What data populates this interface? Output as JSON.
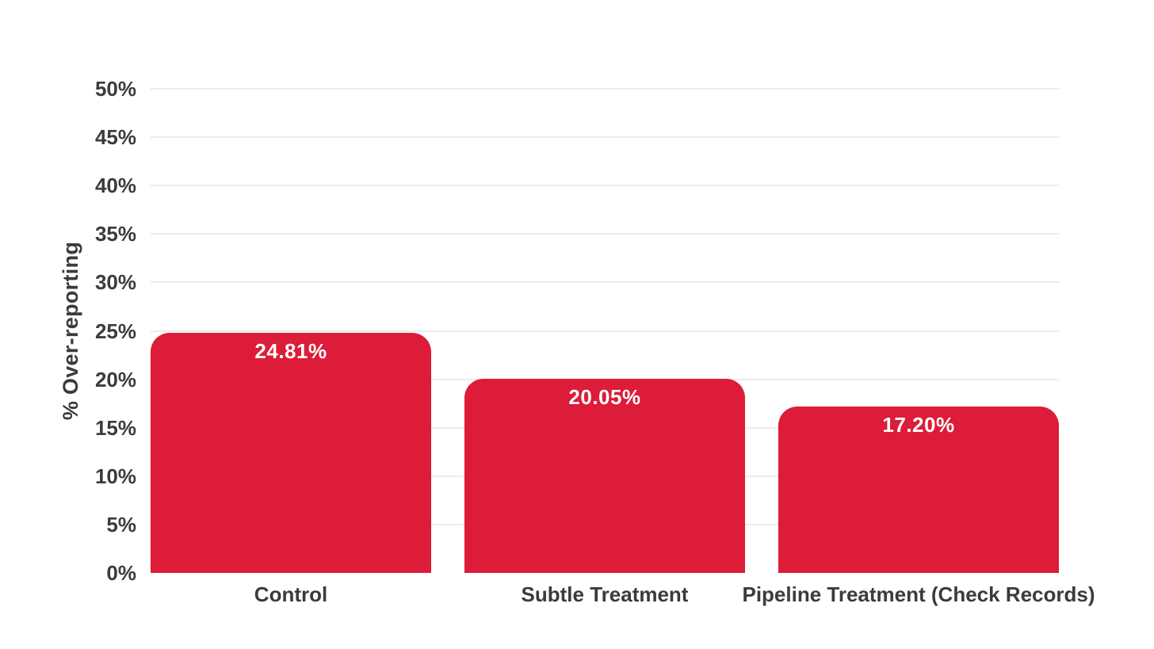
{
  "chart_data": {
    "type": "bar",
    "title": "",
    "categories": [
      "Control",
      "Subtle Treatment",
      "Pipeline Treatment (Check Records)"
    ],
    "values": [
      24.81,
      20.05,
      17.2
    ],
    "value_labels": [
      "24.81%",
      "20.05%",
      "17.20%"
    ],
    "xlabel": "",
    "ylabel": "% Over-reporting",
    "ylim": [
      0,
      50
    ],
    "ytick_step": 5,
    "ytick_labels": [
      "0%",
      "5%",
      "10%",
      "15%",
      "20%",
      "25%",
      "30%",
      "35%",
      "40%",
      "45%",
      "50%"
    ],
    "grid": "horizontal-only, no 0% baseline",
    "legend": "none",
    "colors": {
      "bar": "#DC1C38",
      "bar_label": "#FFFFFF",
      "axis_text": "#3B3B3B",
      "gridline": "#ECECEC",
      "background": "#FFFFFF"
    }
  }
}
